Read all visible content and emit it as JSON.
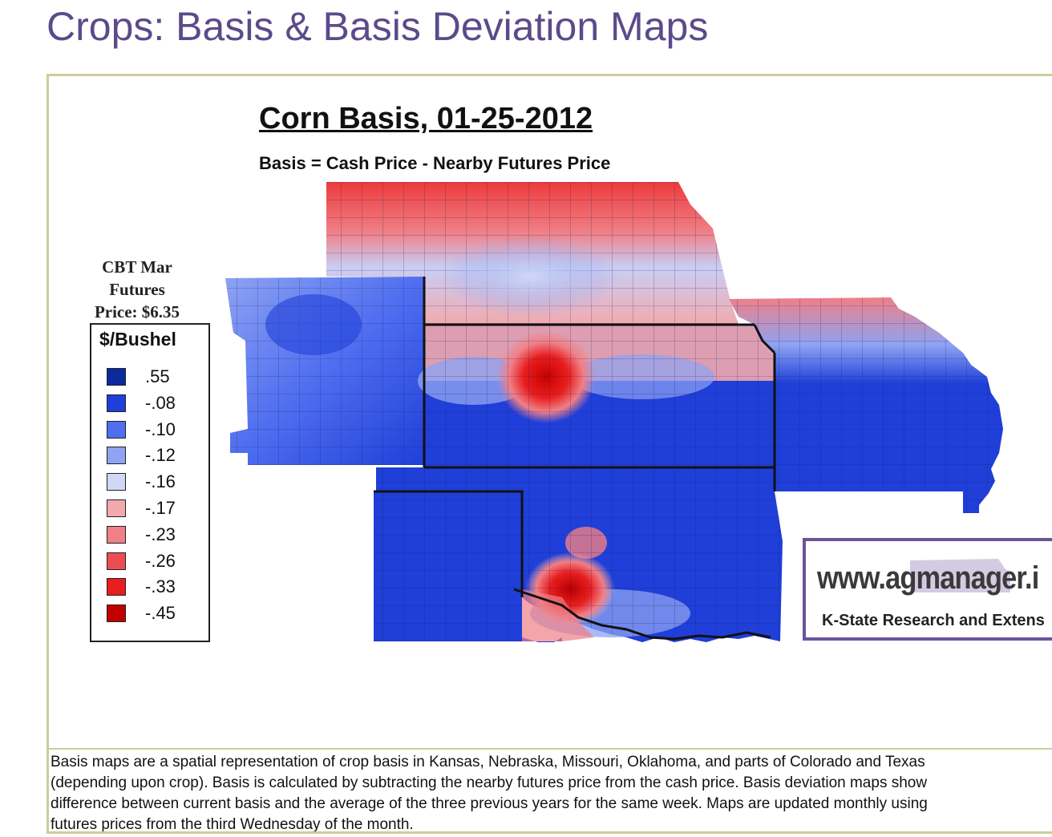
{
  "page": {
    "title": "Crops: Basis & Basis Deviation Maps"
  },
  "map": {
    "title": "Corn Basis, 01-25-2012",
    "subtitle": "Basis = Cash Price - Nearby Futures Price",
    "futures_line1": "CBT Mar",
    "futures_line2": "Futures",
    "futures_line3": "Price: $6.35",
    "legend": {
      "title": "$/Bushel",
      "items": [
        {
          "label": ".55",
          "color": "#0a2a9e"
        },
        {
          "label": "-.08",
          "color": "#1f3fd8"
        },
        {
          "label": "-.10",
          "color": "#4f6ef0"
        },
        {
          "label": "-.12",
          "color": "#8ea3f2"
        },
        {
          "label": "-.16",
          "color": "#cfd8f7"
        },
        {
          "label": "-.17",
          "color": "#f2a9ad"
        },
        {
          "label": "-.23",
          "color": "#f07f86"
        },
        {
          "label": "-.26",
          "color": "#ec4d54"
        },
        {
          "label": "-.33",
          "color": "#e81e1e"
        },
        {
          "label": "-.45",
          "color": "#c10000"
        }
      ]
    },
    "logo": {
      "url": "www.agmanager.i",
      "org": "K-State Research and Extens"
    }
  },
  "caption": {
    "line1": "Basis maps are a spatial representation of crop basis in Kansas, Nebraska, Missouri, Oklahoma, and parts of Colorado and Texas",
    "line2": "(depending upon crop).  Basis is calculated by subtracting the nearby futures price from the cash price.  Basis deviation maps show",
    "line3": "difference between current basis and the average of the three previous years for the same week.  Maps are updated monthly using",
    "line4": "futures prices from the third Wednesday of the month."
  }
}
